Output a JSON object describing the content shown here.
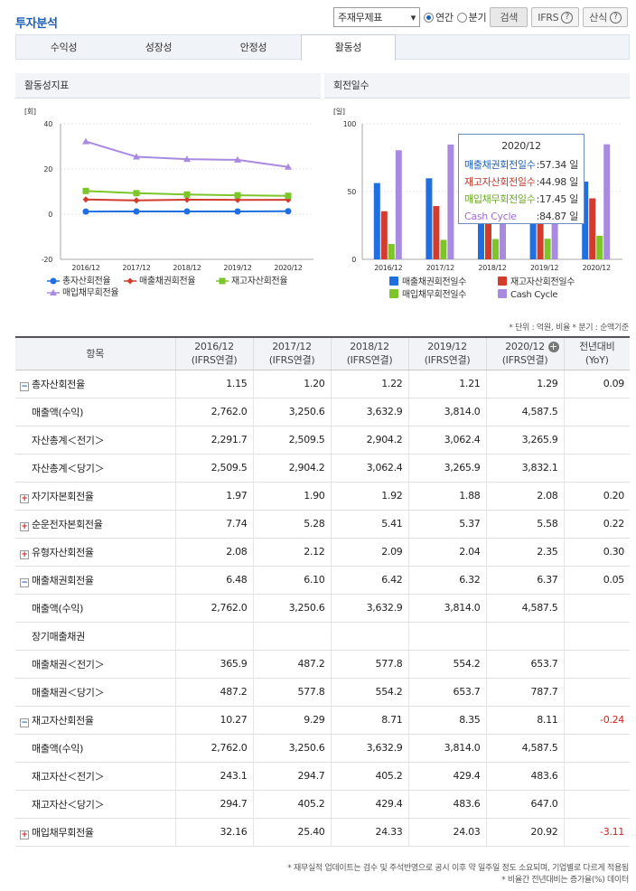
{
  "header": {
    "title": "투자분석",
    "select_value": "주재무제표",
    "radio_annual": "연간",
    "radio_quarter": "분기",
    "search": "검색",
    "ifrs": "IFRS",
    "formula": "산식"
  },
  "tabs": [
    "수익성",
    "성장성",
    "안정성",
    "활동성"
  ],
  "left_panel": {
    "title": "활동성지표",
    "unit": "[회]"
  },
  "right_panel": {
    "title": "회전일수",
    "unit": "[일]"
  },
  "tooltip": {
    "title": "2020/12",
    "rows": [
      {
        "label": "매출채권회전일수",
        "value": ":57.34 일",
        "color": "#1d5fb7"
      },
      {
        "label": "재고자산회전일수",
        "value": ":44.98 일",
        "color": "#c0392b"
      },
      {
        "label": "매입채무회전일수",
        "value": ":17.45 일",
        "color": "#6aa822"
      },
      {
        "label": "Cash Cycle",
        "value": ":84.87 일",
        "color": "#9b6fd1"
      }
    ]
  },
  "chart_data": [
    {
      "type": "line",
      "x": [
        "2016/12",
        "2017/12",
        "2018/12",
        "2019/12",
        "2020/12"
      ],
      "ylim": [
        -20,
        40
      ],
      "yticks": [
        "40",
        "20",
        "0",
        "-20"
      ],
      "series": [
        {
          "name": "총자산회전율",
          "values": [
            1.15,
            1.2,
            1.22,
            1.21,
            1.29
          ],
          "color": "#1f6fe0"
        },
        {
          "name": "매출채권회전율",
          "values": [
            6.48,
            6.1,
            6.42,
            6.32,
            6.37
          ],
          "color": "#d33b2c"
        },
        {
          "name": "재고자산회전율",
          "values": [
            10.27,
            9.29,
            8.71,
            8.35,
            8.11
          ],
          "color": "#7cc52a"
        },
        {
          "name": "매입채무회전율",
          "values": [
            32.16,
            25.4,
            24.33,
            24.03,
            20.92
          ],
          "color": "#a88be0"
        }
      ]
    },
    {
      "type": "bar",
      "categories": [
        "2016/12",
        "2017/12",
        "2018/12",
        "2019/12",
        "2020/12"
      ],
      "ylim": [
        0,
        100
      ],
      "yticks": [
        "100",
        "50",
        "0"
      ],
      "series": [
        {
          "name": "매출채권회전일수",
          "values": [
            56.3,
            59.8,
            56.9,
            57.8,
            57.34
          ],
          "color": "#1f6fe0"
        },
        {
          "name": "재고자산회전일수",
          "values": [
            35.5,
            39.3,
            41.9,
            43.7,
            44.98
          ],
          "color": "#d33b2c"
        },
        {
          "name": "매입채무회전일수",
          "values": [
            11.3,
            14.4,
            15.0,
            15.2,
            17.45
          ],
          "color": "#7cc52a"
        },
        {
          "name": "Cash Cycle",
          "values": [
            80.5,
            84.7,
            83.8,
            86.3,
            84.87
          ],
          "color": "#a88be0"
        }
      ]
    }
  ],
  "note_unit": "* 단위 : 억원, 비율   * 분기 : 순액기준",
  "table": {
    "col_header": "항목",
    "years": [
      {
        "y": "2016/12",
        "s": "(IFRS연결)"
      },
      {
        "y": "2017/12",
        "s": "(IFRS연결)"
      },
      {
        "y": "2018/12",
        "s": "(IFRS연결)"
      },
      {
        "y": "2019/12",
        "s": "(IFRS연결)"
      },
      {
        "y": "2020/12",
        "s": "(IFRS연결)"
      }
    ],
    "yoy": {
      "y": "전년대비",
      "s": "(YoY)"
    },
    "rows": [
      {
        "label": "총자산회전율",
        "type": "minus",
        "v": [
          "1.15",
          "1.20",
          "1.22",
          "1.21",
          "1.29"
        ],
        "yoy": "0.09"
      },
      {
        "label": "매출액(수익)",
        "type": "sub",
        "v": [
          "2,762.0",
          "3,250.6",
          "3,632.9",
          "3,814.0",
          "4,587.5"
        ],
        "yoy": ""
      },
      {
        "label": "자산총계＜전기＞",
        "type": "sub",
        "v": [
          "2,291.7",
          "2,509.5",
          "2,904.2",
          "3,062.4",
          "3,265.9"
        ],
        "yoy": ""
      },
      {
        "label": "자산총계＜당기＞",
        "type": "sub",
        "v": [
          "2,509.5",
          "2,904.2",
          "3,062.4",
          "3,265.9",
          "3,832.1"
        ],
        "yoy": ""
      },
      {
        "label": "자기자본회전율",
        "type": "plus",
        "v": [
          "1.97",
          "1.90",
          "1.92",
          "1.88",
          "2.08"
        ],
        "yoy": "0.20"
      },
      {
        "label": "순운전자본회전율",
        "type": "plus",
        "v": [
          "7.74",
          "5.28",
          "5.41",
          "5.37",
          "5.58"
        ],
        "yoy": "0.22"
      },
      {
        "label": "유형자산회전율",
        "type": "plus",
        "v": [
          "2.08",
          "2.12",
          "2.09",
          "2.04",
          "2.35"
        ],
        "yoy": "0.30"
      },
      {
        "label": "매출채권회전율",
        "type": "minus",
        "v": [
          "6.48",
          "6.10",
          "6.42",
          "6.32",
          "6.37"
        ],
        "yoy": "0.05"
      },
      {
        "label": "매출액(수익)",
        "type": "sub",
        "v": [
          "2,762.0",
          "3,250.6",
          "3,632.9",
          "3,814.0",
          "4,587.5"
        ],
        "yoy": ""
      },
      {
        "label": "장기매출채권",
        "type": "sub",
        "v": [
          "",
          "",
          "",
          "",
          ""
        ],
        "yoy": ""
      },
      {
        "label": "매출채권＜전기＞",
        "type": "sub",
        "v": [
          "365.9",
          "487.2",
          "577.8",
          "554.2",
          "653.7"
        ],
        "yoy": ""
      },
      {
        "label": "매출채권＜당기＞",
        "type": "sub",
        "v": [
          "487.2",
          "577.8",
          "554.2",
          "653.7",
          "787.7"
        ],
        "yoy": ""
      },
      {
        "label": "재고자산회전율",
        "type": "minus",
        "v": [
          "10.27",
          "9.29",
          "8.71",
          "8.35",
          "8.11"
        ],
        "yoy": "-0.24"
      },
      {
        "label": "매출액(수익)",
        "type": "sub",
        "v": [
          "2,762.0",
          "3,250.6",
          "3,632.9",
          "3,814.0",
          "4,587.5"
        ],
        "yoy": ""
      },
      {
        "label": "재고자산＜전기＞",
        "type": "sub",
        "v": [
          "243.1",
          "294.7",
          "405.2",
          "429.4",
          "483.6"
        ],
        "yoy": ""
      },
      {
        "label": "재고자산＜당기＞",
        "type": "sub",
        "v": [
          "294.7",
          "405.2",
          "429.4",
          "483.6",
          "647.0"
        ],
        "yoy": ""
      },
      {
        "label": "매입채무회전율",
        "type": "plus",
        "v": [
          "32.16",
          "25.40",
          "24.33",
          "24.03",
          "20.92"
        ],
        "yoy": "-3.11"
      }
    ]
  },
  "footnotes": [
    "* 재무실적 업데이트는 검수 및 주석반영으로 공시 이후 약 일주일 정도 소요되며, 기업별로 다르게 적용됨",
    "* 비율간 전년대비는 증가율(%) 데이터"
  ]
}
